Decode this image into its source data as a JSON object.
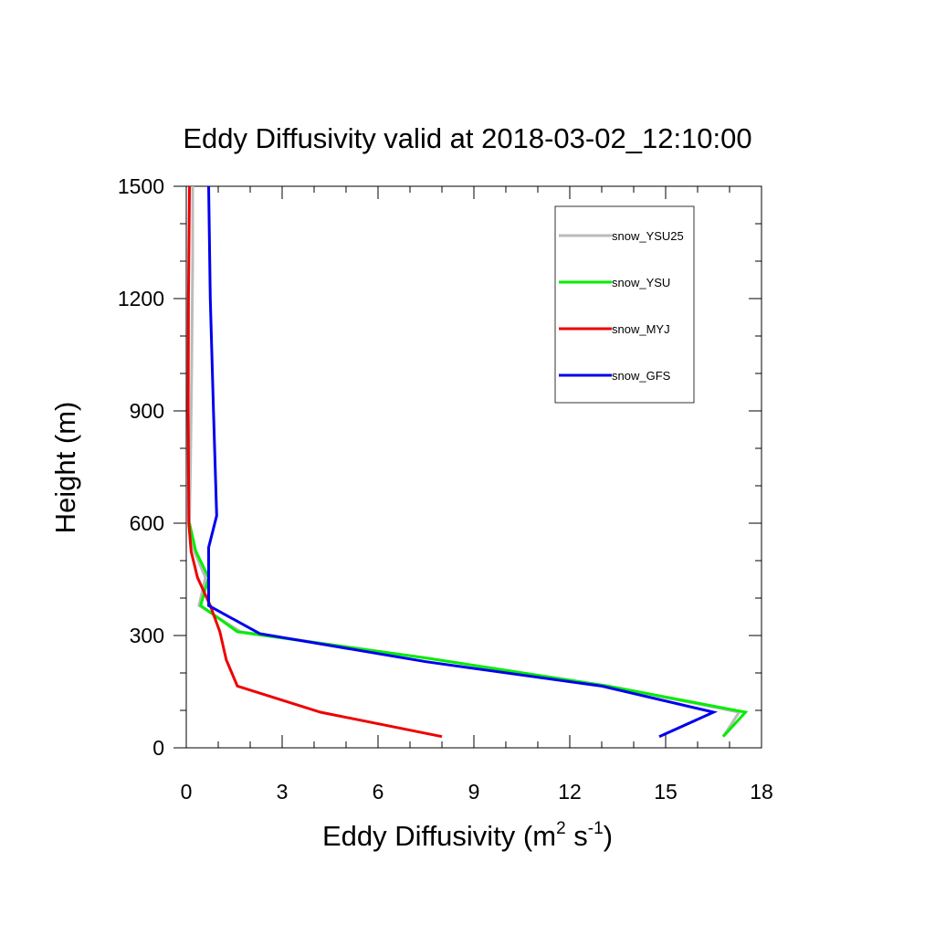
{
  "chart_data": {
    "type": "line",
    "title": "Eddy Diffusivity valid at 2018-03-02_12:10:00",
    "xlabel": "Eddy Diffusivity (m",
    "xlabel_sup1": "2",
    "xlabel_mid": " s",
    "xlabel_sup2": "-1",
    "xlabel_end": ")",
    "ylabel": "Height (m)",
    "xlim": [
      0,
      18
    ],
    "ylim": [
      0,
      1500
    ],
    "xticks": [
      0,
      3,
      6,
      9,
      12,
      15,
      18
    ],
    "yticks": [
      0,
      300,
      600,
      900,
      1200,
      1500
    ],
    "grid": false,
    "legend_position": "top-right",
    "series": [
      {
        "name": "snow_YSU25",
        "color": "#bbbbbb",
        "x": [
          16.8,
          17.3,
          13.2,
          7.5,
          1.7,
          0.4,
          0.6,
          0.25,
          0.1,
          0.13,
          0.17,
          0.2,
          0.2
        ],
        "y": [
          30,
          95,
          165,
          240,
          310,
          380,
          455,
          525,
          600,
          750,
          1000,
          1300,
          1500
        ]
      },
      {
        "name": "snow_YSU",
        "color": "#00ee00",
        "x": [
          16.8,
          17.5,
          13.2,
          7.5,
          1.6,
          0.45,
          0.7,
          0.3,
          0.1
        ],
        "y": [
          30,
          95,
          165,
          240,
          310,
          380,
          455,
          525,
          600
        ]
      },
      {
        "name": "snow_MYJ",
        "color": "#ee0000",
        "x": [
          8.0,
          4.2,
          1.6,
          1.25,
          1.05,
          0.75,
          0.35,
          0.15,
          0.08,
          0.06,
          0.07,
          0.1
        ],
        "y": [
          30,
          95,
          165,
          235,
          310,
          380,
          455,
          525,
          600,
          900,
          1200,
          1500
        ]
      },
      {
        "name": "snow_GFS",
        "color": "#0000ee",
        "x": [
          14.8,
          16.5,
          13.0,
          7.5,
          2.3,
          0.7,
          0.7,
          0.7,
          0.95,
          0.85,
          0.75,
          0.7
        ],
        "y": [
          30,
          95,
          165,
          230,
          305,
          380,
          455,
          535,
          620,
          900,
          1200,
          1500
        ]
      }
    ]
  }
}
